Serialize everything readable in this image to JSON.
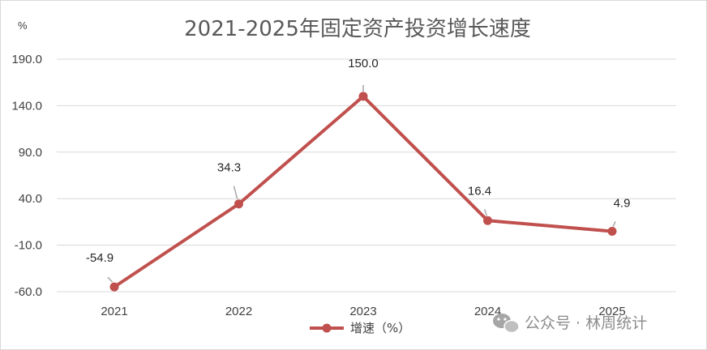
{
  "chart_data": {
    "type": "line",
    "title": "2021-2025年固定资产投资增长速度",
    "y_unit_label": "%",
    "categories": [
      "2021",
      "2022",
      "2023",
      "2024",
      "2025"
    ],
    "series": [
      {
        "name": "增速（%）",
        "values": [
          -54.9,
          34.3,
          150.0,
          16.4,
          4.9
        ],
        "color": "#c0504d"
      }
    ],
    "data_labels": [
      "-54.9",
      "34.3",
      "150.0",
      "16.4",
      "4.9"
    ],
    "y_ticks": [
      "190.0",
      "140.0",
      "90.0",
      "40.0",
      "-10.0",
      "-60.0"
    ],
    "y_tick_values": [
      190,
      140,
      90,
      40,
      -10,
      -60
    ],
    "ylim": [
      -60,
      190
    ],
    "grid": true,
    "legend_position": "bottom"
  },
  "watermark": {
    "text": "公众号 · 林周统计",
    "icon": "wechat-icon"
  },
  "colors": {
    "line": "#c0504d",
    "grid": "#d9d9d9",
    "text": "#404040"
  }
}
